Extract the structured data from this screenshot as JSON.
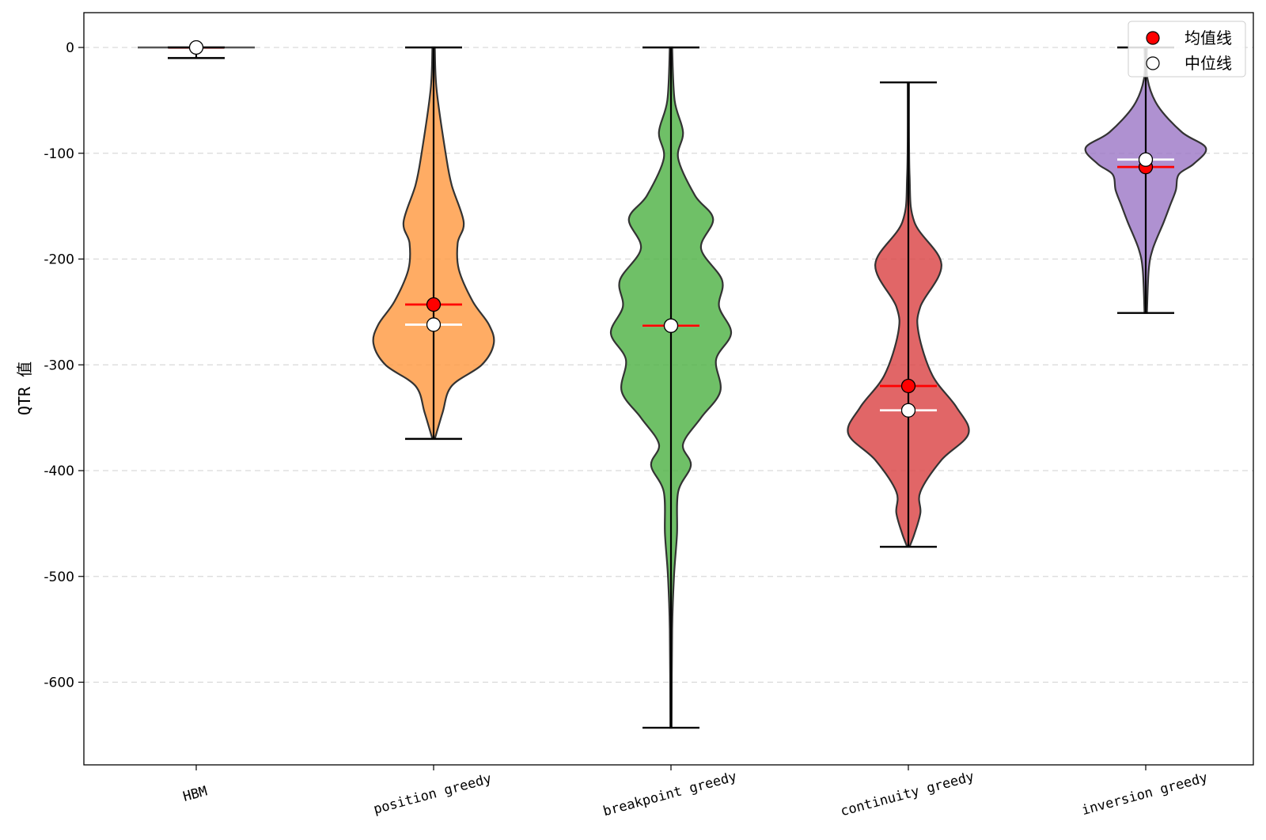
{
  "chart_data": {
    "type": "violin",
    "title": "",
    "xlabel": "",
    "ylabel": "QTR 值",
    "ylim": [
      -680,
      33
    ],
    "yticks": [
      0,
      -100,
      -200,
      -300,
      -400,
      -500,
      -600
    ],
    "ytick_labels": [
      "0",
      "-100",
      "-200",
      "-300",
      "-400",
      "-500",
      "-600"
    ],
    "grid": "horizontal dashed",
    "legend_position": "top-right",
    "legend": [
      {
        "label": "均值线",
        "marker": "red-filled-circle"
      },
      {
        "label": "中位线",
        "marker": "white-circle"
      }
    ],
    "colors": {
      "position greedy": "#ff9a42",
      "breakpoint greedy": "#4fb245",
      "continuity greedy": "#db4446",
      "inversion greedy": "#9e79c7",
      "mean": "#ff0000",
      "median": "#ffffff",
      "edge": "#333333"
    },
    "categories": [
      "HBM",
      "position greedy",
      "breakpoint greedy",
      "continuity greedy",
      "inversion greedy"
    ],
    "series": [
      {
        "name": "HBM",
        "min": -10,
        "max": 0,
        "mean": -1,
        "median": 0,
        "violin": false,
        "density": []
      },
      {
        "name": "position greedy",
        "min": -370,
        "max": 0,
        "mean": -243,
        "median": -262,
        "violin": true,
        "density": [
          [
            0,
            0.02
          ],
          [
            -40,
            0.05
          ],
          [
            -100,
            0.2
          ],
          [
            -130,
            0.3
          ],
          [
            -165,
            0.5
          ],
          [
            -185,
            0.4
          ],
          [
            -210,
            0.42
          ],
          [
            -240,
            0.65
          ],
          [
            -262,
            0.92
          ],
          [
            -280,
            1.0
          ],
          [
            -300,
            0.8
          ],
          [
            -320,
            0.3
          ],
          [
            -345,
            0.15
          ],
          [
            -370,
            0.02
          ]
        ]
      },
      {
        "name": "breakpoint greedy",
        "min": -643,
        "max": 0,
        "mean": -263,
        "median": -263,
        "violin": true,
        "density": [
          [
            0,
            0.02
          ],
          [
            -50,
            0.06
          ],
          [
            -80,
            0.2
          ],
          [
            -105,
            0.12
          ],
          [
            -140,
            0.4
          ],
          [
            -162,
            0.7
          ],
          [
            -190,
            0.5
          ],
          [
            -220,
            0.85
          ],
          [
            -245,
            0.8
          ],
          [
            -270,
            1.0
          ],
          [
            -295,
            0.75
          ],
          [
            -325,
            0.82
          ],
          [
            -350,
            0.5
          ],
          [
            -375,
            0.2
          ],
          [
            -395,
            0.33
          ],
          [
            -420,
            0.12
          ],
          [
            -460,
            0.1
          ],
          [
            -500,
            0.05
          ],
          [
            -550,
            0.02
          ],
          [
            -643,
            0.01
          ]
        ]
      },
      {
        "name": "continuity greedy",
        "min": -472,
        "max": -33,
        "mean": -320,
        "median": -343,
        "violin": true,
        "density": [
          [
            -33,
            0.01
          ],
          [
            -120,
            0.02
          ],
          [
            -165,
            0.1
          ],
          [
            -205,
            0.55
          ],
          [
            -245,
            0.2
          ],
          [
            -270,
            0.17
          ],
          [
            -310,
            0.4
          ],
          [
            -340,
            0.8
          ],
          [
            -365,
            1.0
          ],
          [
            -390,
            0.55
          ],
          [
            -420,
            0.2
          ],
          [
            -440,
            0.2
          ],
          [
            -460,
            0.1
          ],
          [
            -472,
            0.02
          ]
        ]
      },
      {
        "name": "inversion greedy",
        "min": -251,
        "max": 0,
        "mean": -113,
        "median": -106,
        "violin": true,
        "density": [
          [
            0,
            0.02
          ],
          [
            -30,
            0.03
          ],
          [
            -55,
            0.2
          ],
          [
            -80,
            0.6
          ],
          [
            -95,
            1.0
          ],
          [
            -110,
            0.8
          ],
          [
            -120,
            0.55
          ],
          [
            -135,
            0.5
          ],
          [
            -150,
            0.4
          ],
          [
            -165,
            0.3
          ],
          [
            -190,
            0.12
          ],
          [
            -210,
            0.05
          ],
          [
            -251,
            0.02
          ]
        ]
      }
    ]
  }
}
